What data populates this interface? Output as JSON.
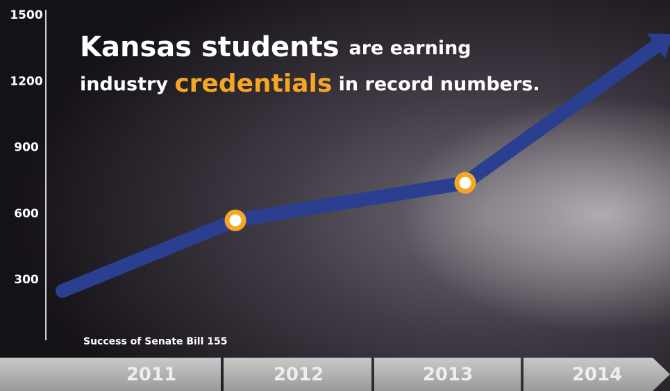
{
  "chart_data": {
    "type": "line",
    "title_parts": [
      "Kansas students",
      "are earning",
      "industry",
      "credentials",
      "in record numbers."
    ],
    "annotation": "Success of Senate Bill 155",
    "categories": [
      "2011",
      "2012",
      "2013",
      "2014"
    ],
    "values": [
      250,
      570,
      740,
      1360
    ],
    "color": "#2a3f8f",
    "marker_color": "#f5a623",
    "ylim": [
      0,
      1500
    ],
    "yticks": [
      300,
      600,
      900,
      1200,
      1500
    ]
  }
}
